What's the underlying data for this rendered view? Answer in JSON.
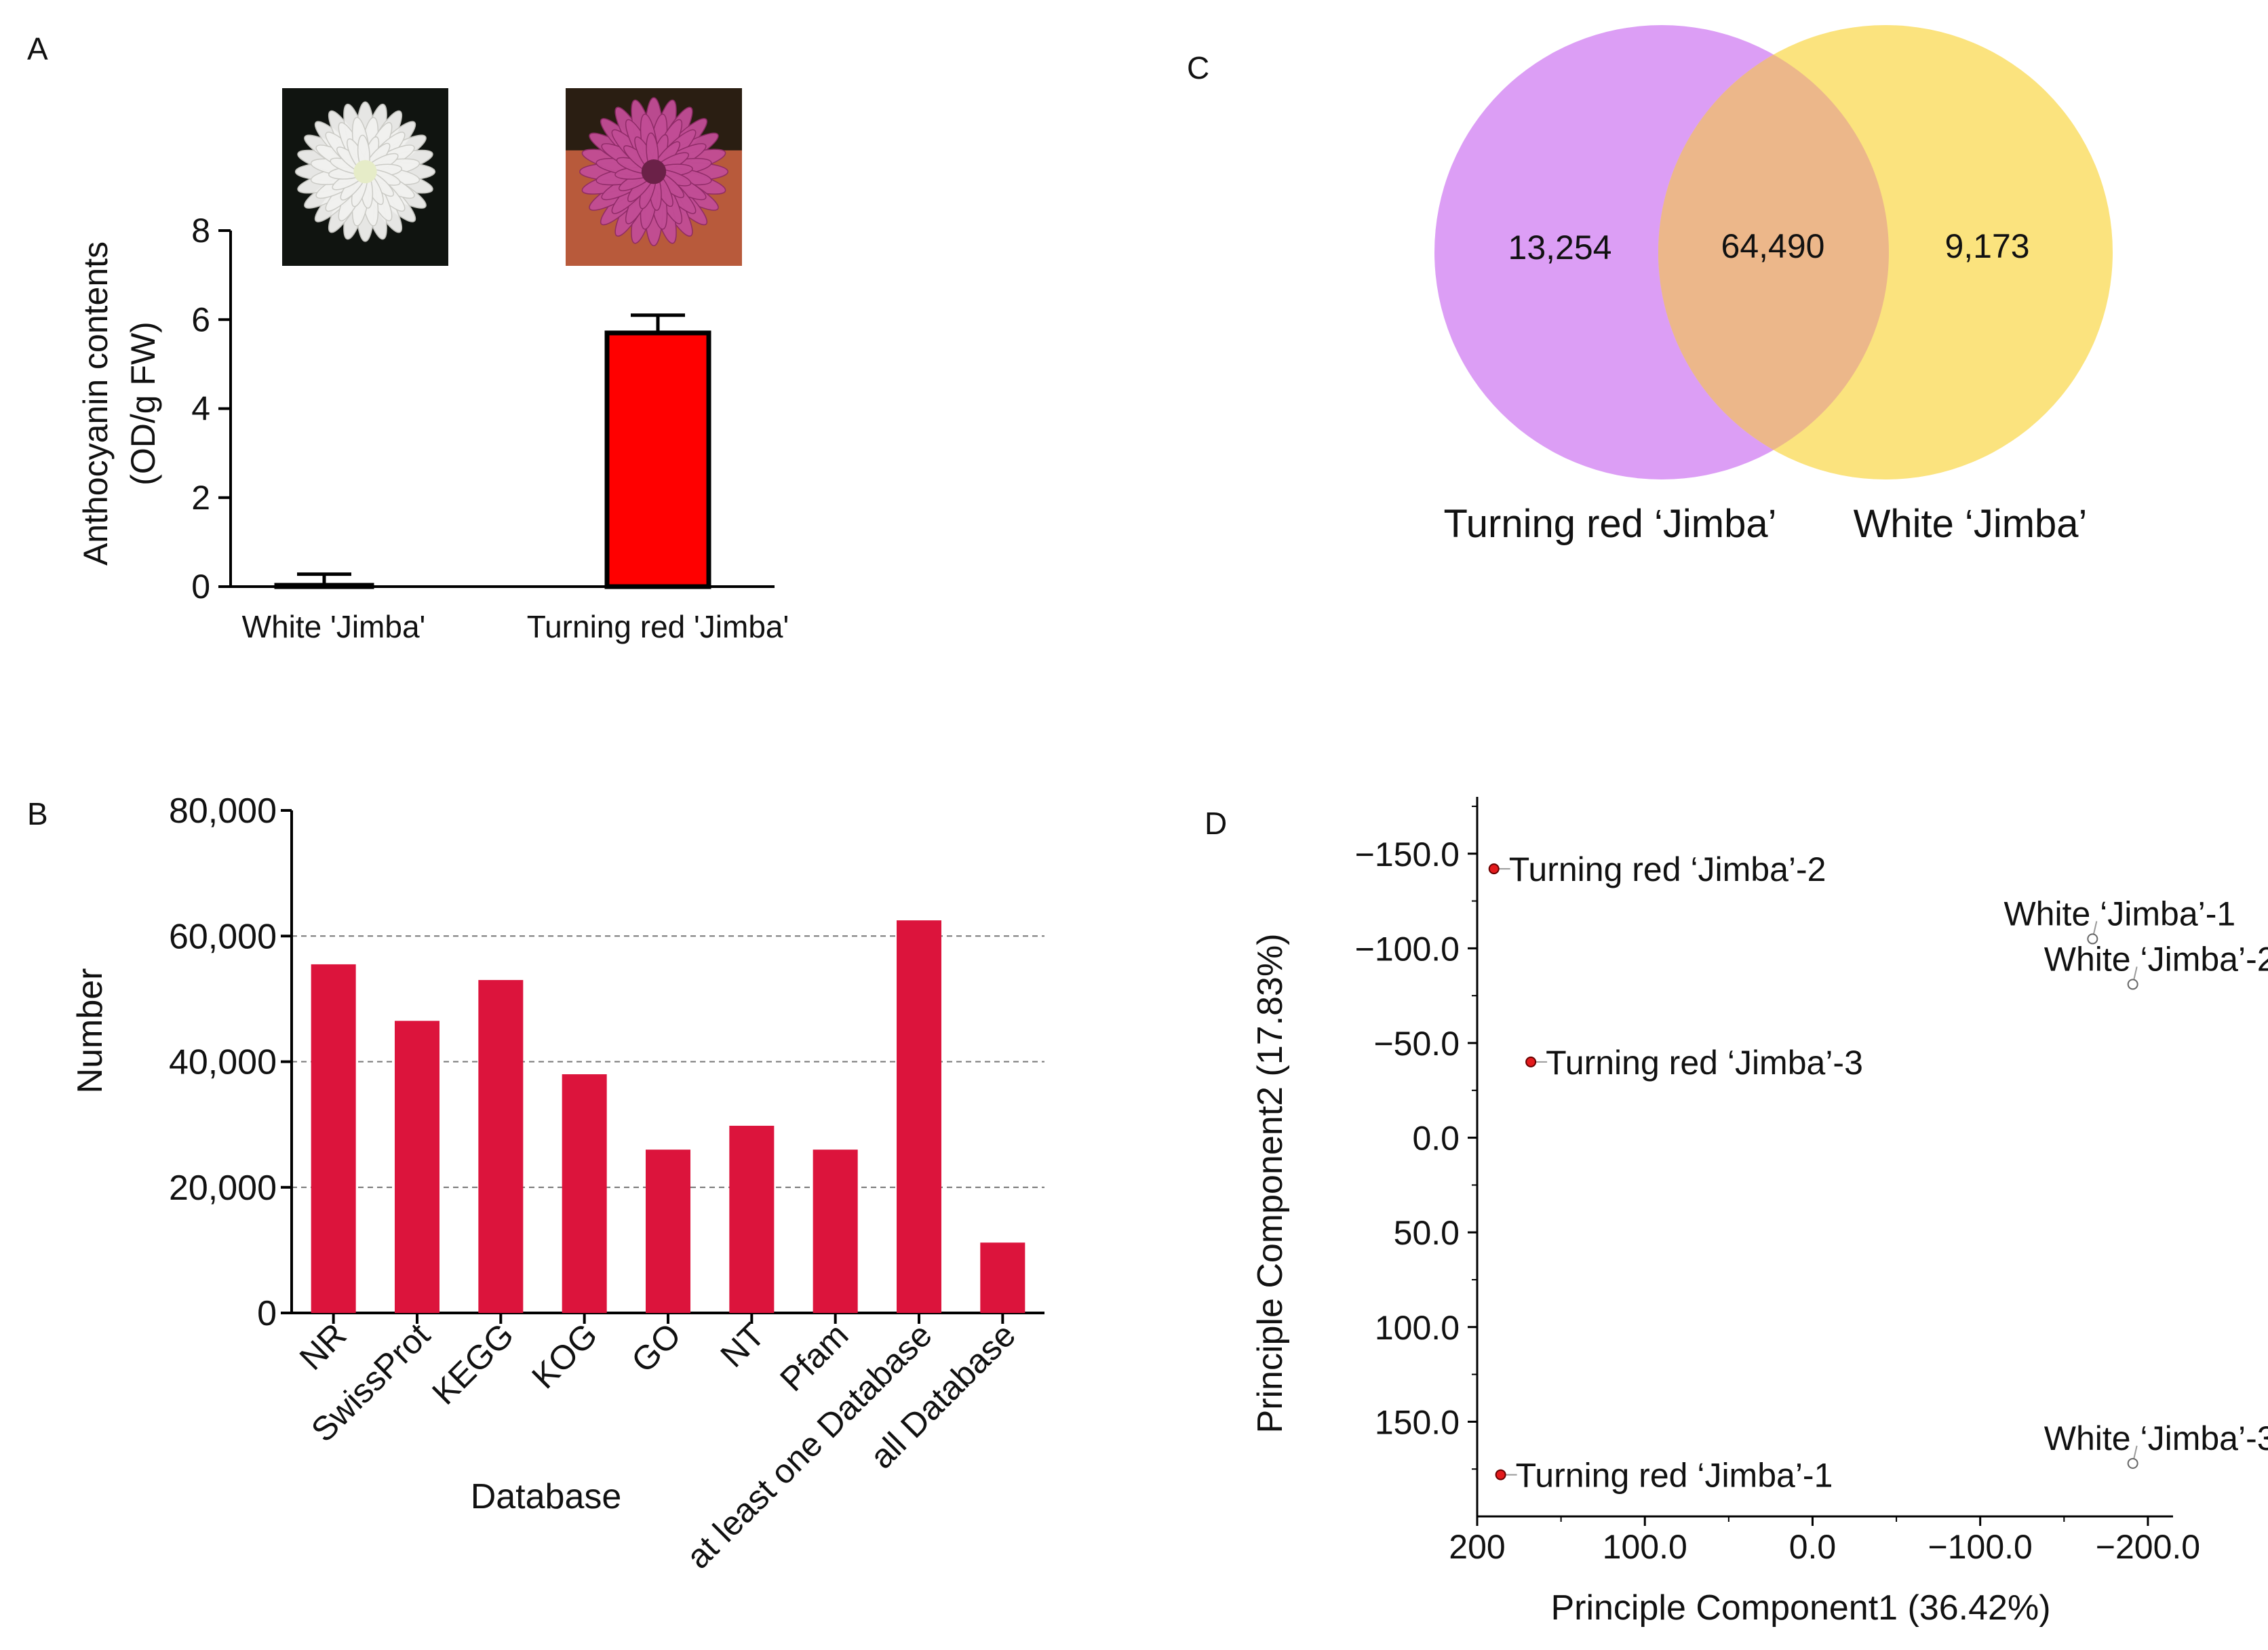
{
  "panels": {
    "A": "A",
    "B": "B",
    "C": "C",
    "D": "D"
  },
  "flower_photos": [
    {
      "name": "white-flower-photo",
      "petal_color": "#f2f2f0",
      "center_color": "#e6ecc8",
      "background": "#101410"
    },
    {
      "name": "red-flower-photo",
      "petal_color": "#c24d96",
      "center_color": "#6b2148",
      "background": "#b85a3b"
    }
  ],
  "chart_data": [
    {
      "panel": "A",
      "type": "bar",
      "categories": [
        "White 'Jimba'",
        "Turning red 'Jimba'"
      ],
      "values": [
        0.03,
        5.7
      ],
      "errors": [
        0.25,
        0.4
      ],
      "title": "",
      "xlabel": "",
      "ylabel": "Anthocyanin contents",
      "ylabel2": "(OD/g FW)",
      "ylim": [
        0,
        8
      ],
      "yticks": [
        "0",
        "2",
        "4",
        "6",
        "8"
      ],
      "bar_color": "#ff0000",
      "grid": false
    },
    {
      "panel": "B",
      "type": "bar",
      "categories": [
        "NR",
        "SwissProt",
        "KEGG",
        "KOG",
        "GO",
        "NT",
        "Pfam",
        "at least one Database",
        "all Database"
      ],
      "values": [
        55500,
        46500,
        53000,
        38000,
        26000,
        29800,
        26000,
        62500,
        11200
      ],
      "title": "",
      "xlabel": "Database",
      "ylabel": "Number",
      "ylim": [
        0,
        80000
      ],
      "yticks": [
        "0",
        "20,000",
        "40,000",
        "60,000",
        "80,000"
      ],
      "bar_color": "#dc143c",
      "grid": true
    },
    {
      "panel": "C",
      "type": "venn",
      "sets": [
        {
          "name": "Turning red ‘Jimba’",
          "only": "13,254",
          "color": "#dc9ef5"
        },
        {
          "name": "White ‘Jimba’",
          "only": "9,173",
          "color": "#fbe37e"
        }
      ],
      "overlap": "64,490",
      "overlap_color": "#ecb78a"
    },
    {
      "panel": "D",
      "type": "scatter",
      "title": "",
      "xlabel": "Principle Component1 (36.42%)",
      "ylabel": "Principle Component2 (17.83%)",
      "xlim": [
        200,
        -215
      ],
      "ylim": [
        -180,
        200
      ],
      "xticks": [
        "200",
        "100.0",
        "0.0",
        "−100.0",
        "−200.0"
      ],
      "yticks": [
        "−150.0",
        "−100.0",
        "−50.0",
        "0.0",
        "50.0",
        "100.0",
        "150.0"
      ],
      "points": [
        {
          "label": "Turning red ‘Jimba’-2",
          "x": 190,
          "y": -142,
          "group": "red"
        },
        {
          "label": "Turning red ‘Jimba’-3",
          "x": 168,
          "y": -40,
          "group": "red"
        },
        {
          "label": "Turning red ‘Jimba’-1",
          "x": 186,
          "y": 178,
          "group": "red"
        },
        {
          "label": "White ‘Jimba’-1",
          "x": -167,
          "y": -105,
          "group": "white"
        },
        {
          "label": "White ‘Jimba’-2",
          "x": -191,
          "y": -81,
          "group": "white"
        },
        {
          "label": "White ‘Jimba’-3",
          "x": -191,
          "y": 172,
          "group": "white"
        }
      ],
      "colors": {
        "red": "#e31a1c",
        "white": "#ffffff"
      }
    }
  ]
}
